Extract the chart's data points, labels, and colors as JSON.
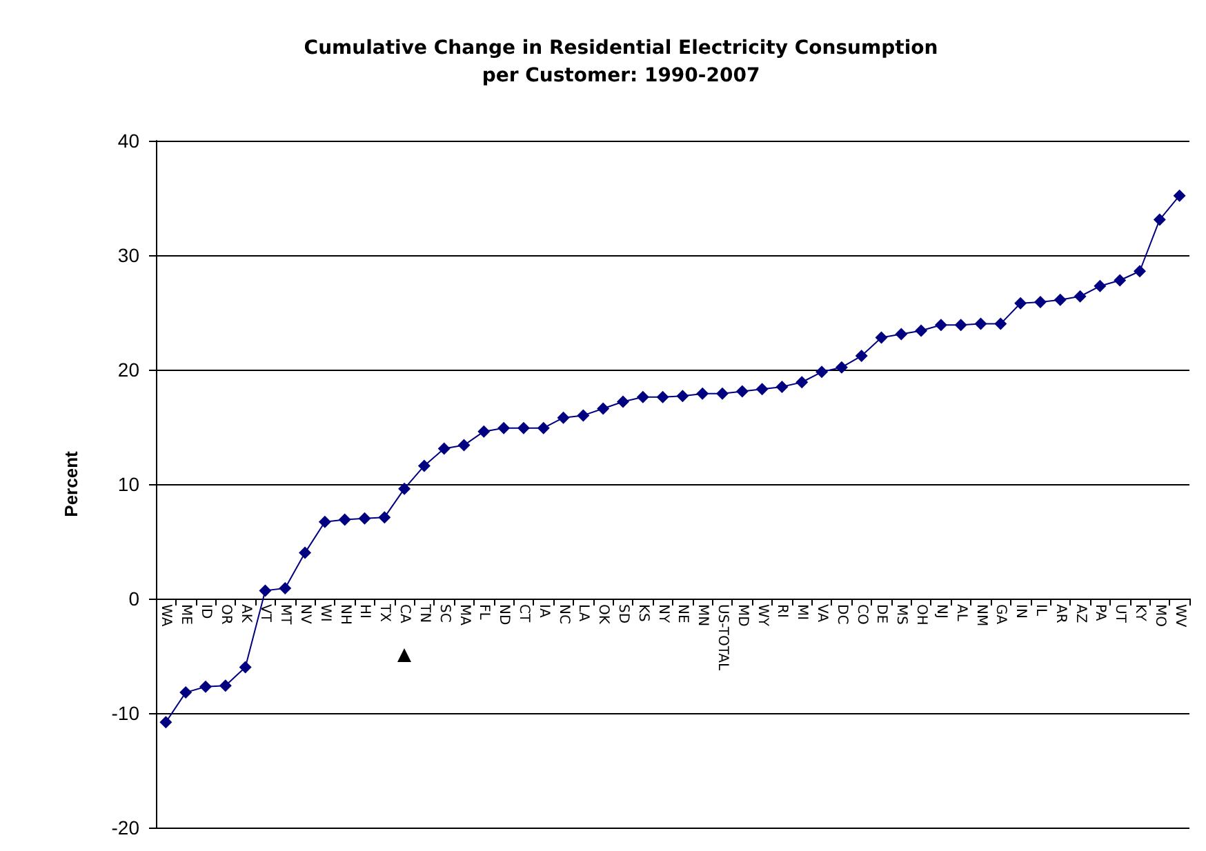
{
  "chart_data": {
    "type": "line",
    "title": "Cumulative Change in Residential Electricity Consumption\nper Customer: 1990-2007",
    "ylabel": "Percent",
    "categories": [
      "WA",
      "ME",
      "ID",
      "OR",
      "AK",
      "VT",
      "MT",
      "NV",
      "WI",
      "NH",
      "HI",
      "TX",
      "CA",
      "TN",
      "SC",
      "MA",
      "FL",
      "ND",
      "CT",
      "IA",
      "NC",
      "LA",
      "OK",
      "SD",
      "KS",
      "NY",
      "NE",
      "MN",
      "US-TOTAL",
      "MD",
      "WY",
      "RI",
      "MI",
      "VA",
      "DC",
      "CO",
      "DE",
      "MS",
      "OH",
      "NJ",
      "AL",
      "NM",
      "GA",
      "IN",
      "IL",
      "AR",
      "AZ",
      "PA",
      "UT",
      "KY",
      "MO",
      "WV"
    ],
    "series": [
      {
        "color": "#000080",
        "values": [
          -10.8,
          -8.2,
          -7.7,
          -7.6,
          -6,
          0.7,
          0.9,
          4,
          6.7,
          6.9,
          7,
          7.1,
          9.6,
          11.6,
          13.1,
          13.4,
          14.6,
          14.9,
          14.9,
          14.9,
          15.8,
          16,
          16.6,
          17.2,
          17.6,
          17.6,
          17.7,
          17.9,
          17.9,
          18.1,
          18.3,
          18.5,
          18.9,
          19.8,
          20.2,
          21.2,
          22.8,
          23.1,
          23.4,
          23.9,
          23.9,
          24,
          24,
          25.8,
          25.9,
          26.1,
          26.4,
          27.3,
          27.8,
          28.6,
          33.1,
          35.2
        ]
      }
    ],
    "ylim": [
      -20,
      40
    ],
    "yticks": [
      -20,
      -10,
      0,
      10,
      20,
      30,
      40
    ],
    "grid": "y",
    "marker": "diamond",
    "line_style": "solid"
  }
}
